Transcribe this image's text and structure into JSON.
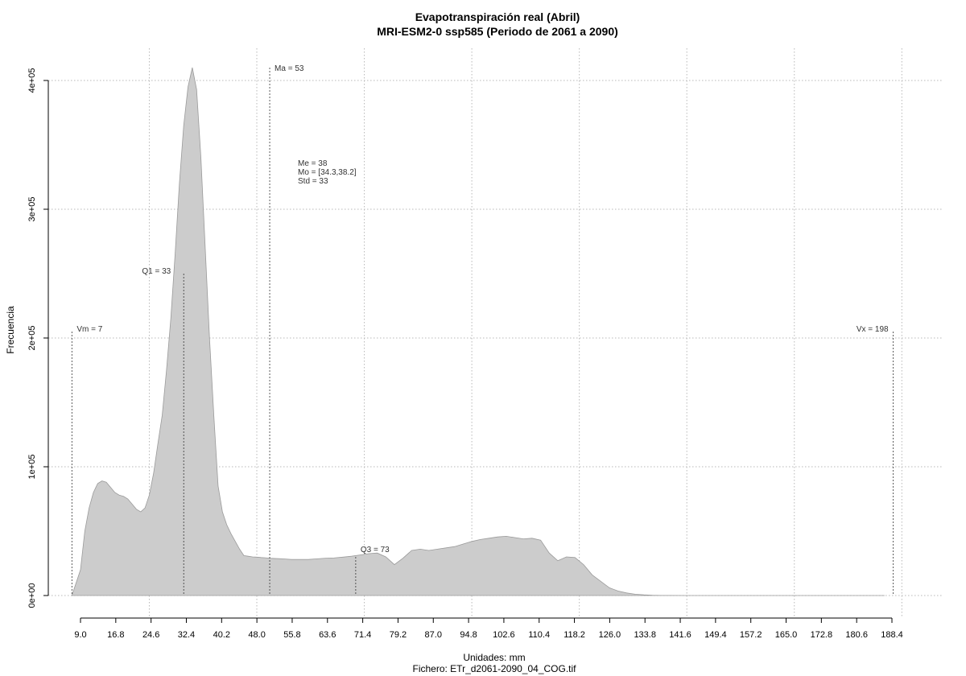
{
  "chart_data": {
    "type": "area",
    "title": "Evapotranspiración real (Abril)",
    "subtitle": "MRI-ESM2-0 ssp585 (Periodo de 2061 a 2090)",
    "xlabel": "Unidades: mm",
    "caption": "Fichero: ETr_d2061-2090_04_COG.tif",
    "ylabel": "Frecuencia",
    "xlim": [
      5,
      205
    ],
    "ylim": [
      0,
      410000
    ],
    "x_ticks": [
      "9.0",
      "16.8",
      "24.6",
      "32.4",
      "40.2",
      "48.0",
      "55.8",
      "63.6",
      "71.4",
      "79.2",
      "87.0",
      "94.8",
      "102.6",
      "110.4",
      "118.2",
      "126.0",
      "133.8",
      "141.6",
      "149.4",
      "157.2",
      "165.0",
      "172.8",
      "180.6",
      "188.4"
    ],
    "y_ticks": [
      {
        "value": 0,
        "label": "0e+00"
      },
      {
        "value": 100000,
        "label": "1e+05"
      },
      {
        "value": 200000,
        "label": "2e+05"
      },
      {
        "value": 300000,
        "label": "3e+05"
      },
      {
        "value": 400000,
        "label": "4e+05"
      }
    ],
    "grid": true,
    "series": [
      {
        "color": "#cccccc",
        "x": [
          7,
          8,
          9,
          10,
          11,
          12,
          13,
          14,
          15,
          16,
          17,
          18,
          19,
          20,
          21,
          22,
          23,
          24,
          25,
          26,
          27,
          28,
          29,
          30,
          31,
          32,
          33,
          34,
          35,
          36,
          37,
          38,
          39,
          40,
          41,
          42,
          43,
          44,
          45,
          46,
          47,
          48,
          49,
          50,
          51,
          52,
          53,
          54,
          56,
          58,
          60,
          62,
          64,
          66,
          68,
          70,
          72,
          74,
          76,
          78,
          80,
          82,
          84,
          86,
          88,
          90,
          92,
          94,
          96,
          98,
          100,
          102,
          104,
          106,
          108,
          110,
          112,
          114,
          116,
          118,
          120,
          122,
          124,
          126,
          128,
          130,
          132,
          134,
          136,
          138,
          140,
          142,
          144,
          146,
          150,
          160,
          170,
          180,
          190,
          196
        ],
        "y": [
          0,
          10000,
          20000,
          50000,
          68000,
          80000,
          87000,
          89000,
          88000,
          84000,
          80000,
          78000,
          77000,
          75000,
          71000,
          67000,
          65000,
          68000,
          78000,
          95000,
          118000,
          140000,
          175000,
          215000,
          265000,
          320000,
          365000,
          395000,
          410000,
          393000,
          340000,
          270000,
          200000,
          140000,
          85000,
          65000,
          55000,
          48000,
          42000,
          36000,
          31000,
          30500,
          30000,
          29800,
          29500,
          29300,
          29000,
          28800,
          28500,
          28000,
          28000,
          28000,
          28500,
          29000,
          29200,
          29800,
          30500,
          31500,
          32500,
          33000,
          30000,
          24000,
          29000,
          35000,
          36000,
          35000,
          36000,
          37000,
          38000,
          40000,
          42000,
          43500,
          44500,
          45500,
          46000,
          45000,
          44000,
          44500,
          43000,
          33000,
          27000,
          30000,
          29500,
          24000,
          16000,
          11000,
          6000,
          3500,
          2000,
          1000,
          500,
          200,
          100,
          50,
          0,
          0,
          0,
          0,
          0,
          0
        ]
      }
    ],
    "annotations": [
      {
        "label": "Vm = 7",
        "x": 7,
        "line_top": 205000
      },
      {
        "label": "Q1 = 33",
        "x": 33,
        "line_top": 250000
      },
      {
        "label": "Ma = 53",
        "x": 53,
        "line_top": 410000
      },
      {
        "label": "Q3 = 73",
        "x": 73,
        "line_top": 30000
      },
      {
        "label": "Vx = 198",
        "x": 198,
        "line_top": 205000
      }
    ],
    "stats": {
      "me": "Me = 38",
      "mo": "Mo = [34.3,38.2]",
      "std": "Std = 33"
    }
  }
}
